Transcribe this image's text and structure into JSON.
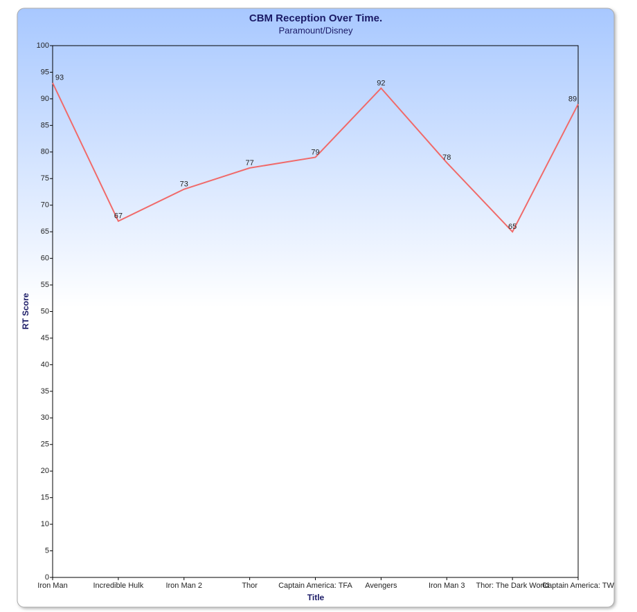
{
  "chart_data": {
    "type": "line",
    "title": "CBM Reception Over Time.",
    "subtitle": "Paramount/Disney",
    "x_label": "Title",
    "y_label": "RT Score",
    "categories": [
      "Iron Man",
      "Incredible Hulk",
      "Iron Man 2",
      "Thor",
      "Captain America: TFA",
      "Avengers",
      "Iron Man 3",
      "Thor: The Dark World",
      "Captain America: TW"
    ],
    "series": [
      {
        "name": "RT Score",
        "color": "#f06a6a",
        "values": [
          93,
          67,
          73,
          77,
          79,
          92,
          78,
          65,
          89
        ]
      }
    ],
    "ylim": [
      0,
      100
    ],
    "yticks": [
      0,
      5,
      10,
      15,
      20,
      25,
      30,
      35,
      40,
      45,
      50,
      55,
      60,
      65,
      70,
      75,
      80,
      85,
      90,
      95,
      100
    ],
    "grid": false
  }
}
